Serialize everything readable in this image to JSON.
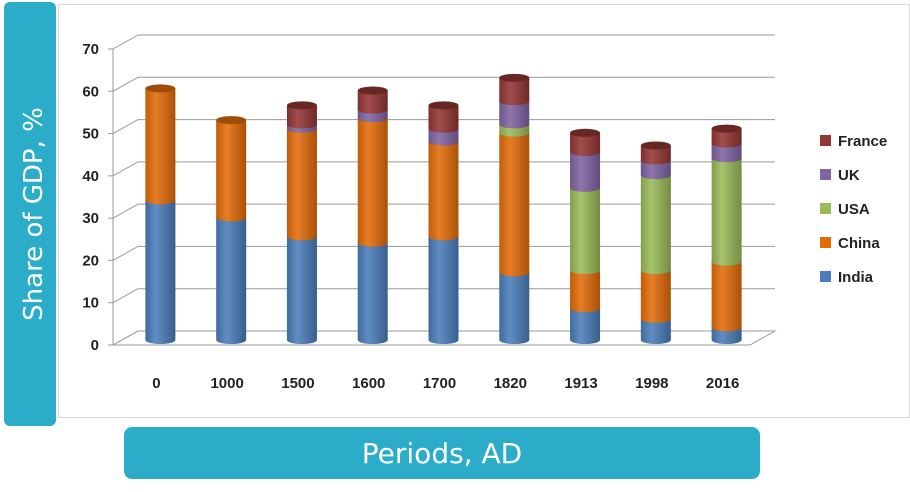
{
  "chart_data": {
    "type": "bar",
    "stacked": true,
    "title": "",
    "ylabel": "Share of GDP, %",
    "xlabel": "Periods, AD",
    "ylim": [
      0,
      70
    ],
    "yticks": [
      0,
      10,
      20,
      30,
      40,
      50,
      60,
      70
    ],
    "categories": [
      "0",
      "1000",
      "1500",
      "1600",
      "1700",
      "1820",
      "1913",
      "1998",
      "2016"
    ],
    "series": [
      {
        "name": "India",
        "color": "#4a7ebb",
        "values": [
          33,
          29,
          24.5,
          23,
          24.5,
          16,
          7.5,
          5,
          3
        ]
      },
      {
        "name": "China",
        "color": "#e36c09",
        "values": [
          26.5,
          23,
          25.5,
          29.5,
          22.5,
          33,
          9,
          11.5,
          15.5
        ]
      },
      {
        "name": "USA",
        "color": "#9bbb59",
        "values": [
          0,
          0,
          0,
          0,
          0,
          2,
          19.5,
          22.5,
          24.5
        ]
      },
      {
        "name": "UK",
        "color": "#8064a2",
        "values": [
          0,
          0,
          1,
          2,
          3,
          5.5,
          8.5,
          3.5,
          3.5
        ]
      },
      {
        "name": "France",
        "color": "#943634",
        "values": [
          0,
          0,
          4.5,
          4.5,
          5.5,
          5.5,
          4.5,
          3.5,
          3.5
        ]
      }
    ],
    "legend": [
      "France",
      "UK",
      "USA",
      "China",
      "India"
    ],
    "legend_position": "right",
    "grid": true
  }
}
